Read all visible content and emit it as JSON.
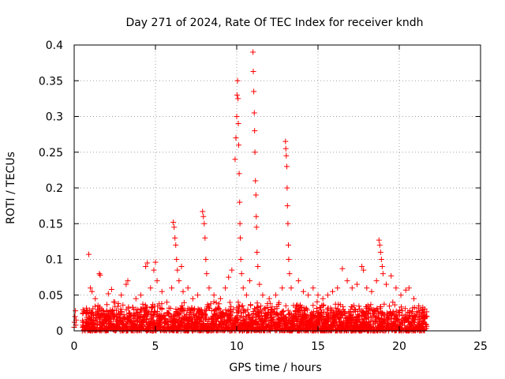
{
  "chart_data": {
    "type": "scatter",
    "title": "Day 271 of 2024, Rate Of TEC Index for receiver kndh",
    "xlabel": "GPS time / hours",
    "ylabel": "ROTI / TECUs",
    "xlim": [
      0,
      25
    ],
    "ylim": [
      0,
      0.4
    ],
    "xticks": [
      "0",
      "5",
      "10",
      "15",
      "20",
      "25"
    ],
    "yticks": [
      "0",
      "0.05",
      "0.1",
      "0.15",
      "0.2",
      "0.25",
      "0.3",
      "0.35",
      "0.4"
    ],
    "grid": true,
    "marker": "+",
    "color": "#ff0000",
    "background_band": {
      "x_range": [
        0.5,
        21.7
      ],
      "y_max_typical": 0.035
    },
    "series": [
      {
        "points": [
          [
            0.0,
            0.005
          ],
          [
            0.02,
            0.012
          ],
          [
            0.05,
            0.02
          ],
          [
            0.08,
            0.028
          ],
          [
            0.1,
            0.008
          ],
          [
            0.12,
            0.015
          ],
          [
            0.9,
            0.107
          ],
          [
            1.0,
            0.06
          ],
          [
            1.1,
            0.055
          ],
          [
            1.3,
            0.045
          ],
          [
            1.55,
            0.08
          ],
          [
            1.6,
            0.078
          ],
          [
            2.1,
            0.052
          ],
          [
            2.3,
            0.058
          ],
          [
            2.5,
            0.04
          ],
          [
            2.9,
            0.05
          ],
          [
            3.2,
            0.065
          ],
          [
            3.3,
            0.07
          ],
          [
            3.8,
            0.045
          ],
          [
            4.1,
            0.05
          ],
          [
            4.4,
            0.09
          ],
          [
            4.5,
            0.095
          ],
          [
            4.7,
            0.06
          ],
          [
            4.9,
            0.085
          ],
          [
            5.0,
            0.096
          ],
          [
            5.1,
            0.07
          ],
          [
            5.4,
            0.055
          ],
          [
            5.7,
            0.04
          ],
          [
            6.0,
            0.06
          ],
          [
            6.1,
            0.152
          ],
          [
            6.15,
            0.145
          ],
          [
            6.2,
            0.13
          ],
          [
            6.25,
            0.12
          ],
          [
            6.3,
            0.1
          ],
          [
            6.35,
            0.085
          ],
          [
            6.45,
            0.07
          ],
          [
            6.6,
            0.09
          ],
          [
            6.7,
            0.055
          ],
          [
            7.0,
            0.06
          ],
          [
            7.3,
            0.045
          ],
          [
            7.6,
            0.05
          ],
          [
            7.9,
            0.167
          ],
          [
            7.95,
            0.16
          ],
          [
            8.0,
            0.15
          ],
          [
            8.05,
            0.13
          ],
          [
            8.1,
            0.1
          ],
          [
            8.15,
            0.08
          ],
          [
            8.3,
            0.06
          ],
          [
            8.6,
            0.05
          ],
          [
            9.0,
            0.045
          ],
          [
            9.3,
            0.06
          ],
          [
            9.5,
            0.075
          ],
          [
            9.7,
            0.085
          ],
          [
            9.9,
            0.24
          ],
          [
            9.95,
            0.27
          ],
          [
            10.0,
            0.3
          ],
          [
            10.02,
            0.33
          ],
          [
            10.05,
            0.35
          ],
          [
            10.08,
            0.325
          ],
          [
            10.1,
            0.29
          ],
          [
            10.12,
            0.26
          ],
          [
            10.15,
            0.22
          ],
          [
            10.18,
            0.18
          ],
          [
            10.2,
            0.15
          ],
          [
            10.22,
            0.13
          ],
          [
            10.25,
            0.1
          ],
          [
            10.3,
            0.08
          ],
          [
            10.4,
            0.06
          ],
          [
            10.6,
            0.05
          ],
          [
            10.8,
            0.07
          ],
          [
            11.0,
            0.39
          ],
          [
            11.02,
            0.363
          ],
          [
            11.05,
            0.335
          ],
          [
            11.08,
            0.305
          ],
          [
            11.1,
            0.28
          ],
          [
            11.12,
            0.25
          ],
          [
            11.15,
            0.21
          ],
          [
            11.18,
            0.19
          ],
          [
            11.2,
            0.16
          ],
          [
            11.22,
            0.145
          ],
          [
            11.25,
            0.11
          ],
          [
            11.3,
            0.09
          ],
          [
            11.4,
            0.065
          ],
          [
            11.6,
            0.05
          ],
          [
            12.0,
            0.045
          ],
          [
            12.4,
            0.05
          ],
          [
            12.8,
            0.06
          ],
          [
            13.0,
            0.265
          ],
          [
            13.02,
            0.255
          ],
          [
            13.05,
            0.245
          ],
          [
            13.08,
            0.23
          ],
          [
            13.1,
            0.2
          ],
          [
            13.12,
            0.175
          ],
          [
            13.15,
            0.15
          ],
          [
            13.18,
            0.12
          ],
          [
            13.2,
            0.1
          ],
          [
            13.25,
            0.08
          ],
          [
            13.35,
            0.06
          ],
          [
            13.8,
            0.07
          ],
          [
            14.1,
            0.055
          ],
          [
            14.4,
            0.05
          ],
          [
            14.7,
            0.06
          ],
          [
            15.0,
            0.05
          ],
          [
            15.3,
            0.045
          ],
          [
            15.6,
            0.05
          ],
          [
            15.9,
            0.055
          ],
          [
            16.2,
            0.06
          ],
          [
            16.5,
            0.087
          ],
          [
            16.8,
            0.07
          ],
          [
            17.1,
            0.06
          ],
          [
            17.4,
            0.065
          ],
          [
            17.7,
            0.09
          ],
          [
            17.8,
            0.085
          ],
          [
            18.0,
            0.06
          ],
          [
            18.3,
            0.055
          ],
          [
            18.6,
            0.07
          ],
          [
            18.75,
            0.127
          ],
          [
            18.8,
            0.12
          ],
          [
            18.85,
            0.11
          ],
          [
            18.9,
            0.1
          ],
          [
            18.95,
            0.09
          ],
          [
            19.0,
            0.08
          ],
          [
            19.2,
            0.065
          ],
          [
            19.5,
            0.077
          ],
          [
            19.8,
            0.06
          ],
          [
            20.1,
            0.05
          ],
          [
            20.4,
            0.057
          ],
          [
            20.6,
            0.06
          ],
          [
            20.9,
            0.045
          ],
          [
            21.2,
            0.035
          ],
          [
            21.5,
            0.025
          ],
          [
            21.7,
            0.02
          ]
        ]
      }
    ]
  }
}
